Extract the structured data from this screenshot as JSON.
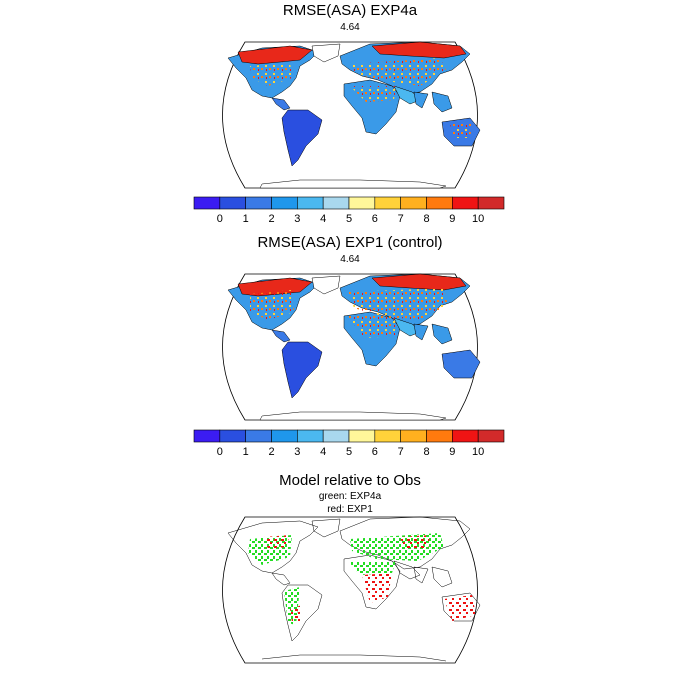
{
  "panels": [
    {
      "title": "RMSE(ASA) EXP4a",
      "subtitle": "4.64"
    },
    {
      "title": "RMSE(ASA) EXP1 (control)",
      "subtitle": "4.64"
    },
    {
      "title": "Model relative to Obs",
      "subtitle_lines": [
        "green: EXP4a",
        "red: EXP1"
      ]
    }
  ],
  "colorbar": {
    "colors": [
      "#3b1cf2",
      "#2a4fe0",
      "#3a7ae6",
      "#1f97ec",
      "#4bb8f0",
      "#a9d8ee",
      "#fff79a",
      "#ffd23a",
      "#ffb01f",
      "#ff7a0e",
      "#f01414",
      "#d22a2a"
    ],
    "labels": [
      "0",
      "1",
      "2",
      "3",
      "4",
      "5",
      "6",
      "7",
      "8",
      "9",
      "10"
    ]
  },
  "marker_colors": {
    "exp4a": "#22dd22",
    "exp1": "#ee1111"
  }
}
